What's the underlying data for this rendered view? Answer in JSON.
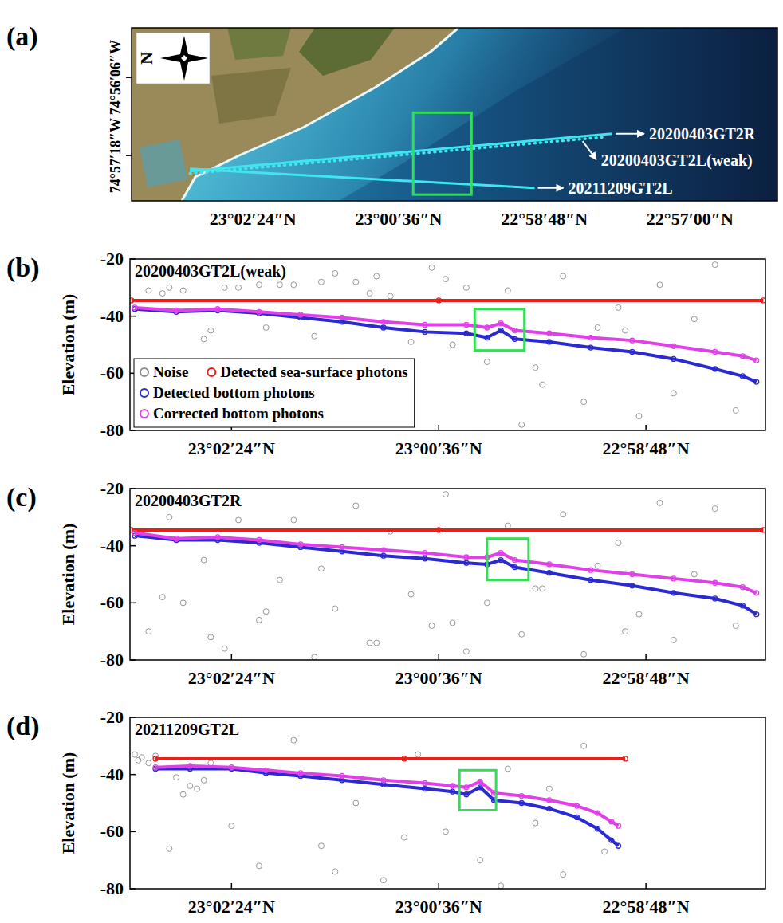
{
  "chart_data": [
    {
      "type": "map",
      "title": "(a)",
      "compass": "N",
      "xlim": [
        23.065,
        22.932
      ],
      "ylim": [
        74.9666,
        74.9223
      ],
      "xticks": [
        {
          "value": 23.04,
          "label": "23°02′24″N"
        },
        {
          "value": 23.01,
          "label": "23°00′36″N"
        },
        {
          "value": 22.98,
          "label": "22°58′48″N"
        },
        {
          "value": 22.95,
          "label": "22°57′00″N"
        }
      ],
      "yticks": [
        {
          "value": 74.955,
          "label": "74°57′18″W"
        },
        {
          "value": 74.935,
          "label": "74°56′06″W"
        }
      ],
      "series": [
        {
          "name": "20200403GT2R",
          "color": "#3fe6f0",
          "line_style": "solid",
          "x": [
            23.053,
            22.966
          ],
          "values": [
            74.959,
            74.9494
          ]
        },
        {
          "name": "20200403GT2L(weak)",
          "color": "#3fe6f0",
          "line_style": "dotted",
          "x": [
            23.053,
            22.968
          ],
          "values": [
            74.9596,
            74.9503
          ]
        },
        {
          "name": "20211209GT2L",
          "color": "#3fe6f0",
          "line_style": "solid",
          "x": [
            23.053,
            22.982
          ],
          "values": [
            74.9584,
            74.9633
          ]
        }
      ],
      "highlight_box": {
        "x": [
          23.007,
          22.995
        ],
        "values": [
          74.944,
          74.965
        ],
        "color": "#33dd55"
      }
    },
    {
      "type": "scatter",
      "title": "(b)",
      "subtitle": "20200403GT2L(weak)",
      "y_label": "Elevation (m)",
      "xlim": [
        23.0547,
        22.9627
      ],
      "ylim": [
        -80,
        -20
      ],
      "xticks": [
        {
          "value": 23.04,
          "label": "23°02′24″N"
        },
        {
          "value": 23.01,
          "label": "23°00′36″N"
        },
        {
          "value": 22.98,
          "label": "22°58′48″N"
        }
      ],
      "yticks": [
        -80,
        -60,
        -40,
        -20
      ],
      "legend": "lower left",
      "series": [
        {
          "name": "Noise",
          "type": "scatter",
          "marker": "circle",
          "color": "#8c8c8c",
          "x": [
            23.052,
            23.049,
            23.047,
            23.044,
            23.041,
            23.039,
            23.036,
            23.033,
            23.031,
            23.028,
            23.025,
            23.022,
            23.02,
            23.017,
            23.014,
            23.011,
            23.009,
            23.006,
            23.003,
            23.0,
            22.998,
            22.995,
            22.992,
            22.989,
            22.987,
            22.984,
            22.981,
            22.978,
            22.976,
            22.973,
            22.97,
            22.967,
            23.05,
            23.043,
            23.035,
            23.027,
            23.019,
            23.008,
            22.996,
            22.983
          ],
          "values": [
            -31,
            -30,
            -31,
            -48,
            -30,
            -30,
            -29,
            -29,
            -29,
            -47,
            -25,
            -28,
            -32,
            -33,
            -49,
            -23,
            -27,
            -30,
            -56,
            -31,
            -78,
            -64,
            -26,
            -70,
            -44,
            -37,
            -75,
            -29,
            -67,
            -41,
            -22,
            -73,
            -32,
            -45,
            -44,
            -28,
            -26,
            -50,
            -58,
            -45
          ]
        },
        {
          "name": "Detected sea-surface photons",
          "type": "line",
          "marker": "circle",
          "color": "#e8201a",
          "x": [
            23.0545,
            23.01,
            22.963
          ],
          "values": [
            -34.5,
            -34.5,
            -34.5
          ]
        },
        {
          "name": "Detected bottom photons",
          "type": "line",
          "marker": "circle",
          "color": "#2a2ad0",
          "x": [
            23.054,
            23.048,
            23.042,
            23.036,
            23.03,
            23.024,
            23.018,
            23.012,
            23.006,
            23.003,
            23.001,
            22.999,
            22.994,
            22.988,
            22.982,
            22.976,
            22.97,
            22.966,
            22.964
          ],
          "values": [
            -37.5,
            -38.5,
            -38,
            -39,
            -40.5,
            -42,
            -44,
            -45.5,
            -46,
            -47.5,
            -45,
            -48,
            -49,
            -51,
            -52.5,
            -55,
            -58.5,
            -61,
            -63
          ]
        },
        {
          "name": "Corrected bottom photons",
          "type": "line",
          "marker": "circle",
          "color": "#e040e8",
          "x": [
            23.054,
            23.048,
            23.042,
            23.036,
            23.03,
            23.024,
            23.018,
            23.012,
            23.006,
            23.003,
            23.001,
            22.999,
            22.994,
            22.988,
            22.982,
            22.976,
            22.97,
            22.966,
            22.964
          ],
          "values": [
            -37,
            -38,
            -37.5,
            -38.5,
            -39.5,
            -40.5,
            -42,
            -43,
            -43,
            -44,
            -42.5,
            -45,
            -46,
            -47.5,
            -48.5,
            -50.5,
            -52.5,
            -54,
            -55.5
          ]
        }
      ],
      "highlight_box": {
        "x": [
          23.0048,
          22.9976
        ],
        "values": [
          -37.5,
          -52
        ],
        "color": "#33dd55"
      }
    },
    {
      "type": "scatter",
      "title": "(c)",
      "subtitle": "20200403GT2R",
      "y_label": "Elevation (m)",
      "xlim": [
        23.0547,
        22.9627
      ],
      "ylim": [
        -80,
        -20
      ],
      "xticks": [
        {
          "value": 23.04,
          "label": "23°02′24″N"
        },
        {
          "value": 23.01,
          "label": "23°00′36″N"
        },
        {
          "value": 22.98,
          "label": "22°58′48″N"
        }
      ],
      "yticks": [
        -80,
        -60,
        -40,
        -20
      ],
      "series": [
        {
          "type": "scatter",
          "marker": "circle",
          "color": "#8c8c8c",
          "x": [
            23.052,
            23.049,
            23.047,
            23.044,
            23.041,
            23.039,
            23.036,
            23.033,
            23.031,
            23.028,
            23.025,
            23.022,
            23.02,
            23.017,
            23.014,
            23.011,
            23.009,
            23.006,
            23.003,
            23.0,
            22.998,
            22.995,
            22.992,
            22.989,
            22.987,
            22.984,
            22.981,
            22.978,
            22.976,
            22.973,
            22.97,
            22.967,
            23.05,
            23.043,
            23.035,
            23.027,
            23.019,
            23.008,
            22.996,
            22.983
          ],
          "values": [
            -70,
            -30,
            -60,
            -45,
            -76,
            -31,
            -66,
            -52,
            -31,
            -79,
            -62,
            -26,
            -74,
            -35,
            -57,
            -68,
            -22,
            -77,
            -60,
            -33,
            -71,
            -55,
            -29,
            -78,
            -47,
            -39,
            -64,
            -25,
            -73,
            -50,
            -27,
            -68,
            -58,
            -72,
            -63,
            -48,
            -74,
            -67,
            -55,
            -70
          ]
        },
        {
          "type": "line",
          "marker": "circle",
          "color": "#e8201a",
          "x": [
            23.0545,
            23.01,
            22.963
          ],
          "values": [
            -34.5,
            -34.5,
            -34.5
          ]
        },
        {
          "type": "line",
          "marker": "circle",
          "color": "#2a2ad0",
          "x": [
            23.054,
            23.048,
            23.042,
            23.036,
            23.03,
            23.024,
            23.018,
            23.012,
            23.006,
            23.003,
            23.001,
            22.999,
            22.994,
            22.988,
            22.982,
            22.976,
            22.97,
            22.966,
            22.964
          ],
          "values": [
            -36.5,
            -38,
            -38,
            -39,
            -40.5,
            -42,
            -43.5,
            -44.5,
            -46,
            -46.5,
            -45,
            -47.5,
            -49.5,
            -52,
            -54,
            -56.5,
            -58.5,
            -61,
            -64
          ]
        },
        {
          "type": "line",
          "marker": "circle",
          "color": "#e040e8",
          "x": [
            23.054,
            23.048,
            23.042,
            23.036,
            23.03,
            23.024,
            23.018,
            23.012,
            23.006,
            23.003,
            23.001,
            22.999,
            22.994,
            22.988,
            22.982,
            22.976,
            22.97,
            22.966,
            22.964
          ],
          "values": [
            -35.5,
            -37.5,
            -37,
            -38,
            -39.5,
            -40.5,
            -41.5,
            -42.5,
            -44,
            -44,
            -42.5,
            -45,
            -46.5,
            -48.5,
            -50,
            -51.5,
            -53,
            -54.5,
            -56.5
          ]
        }
      ],
      "highlight_box": {
        "x": [
          23.003,
          22.997
        ],
        "values": [
          -37.5,
          -52
        ],
        "color": "#33dd55"
      }
    },
    {
      "type": "scatter",
      "title": "(d)",
      "subtitle": "20211209GT2L",
      "y_label": "Elevation (m)",
      "xlim": [
        23.0547,
        22.9627
      ],
      "ylim": [
        -80,
        -20
      ],
      "xticks": [
        {
          "value": 23.04,
          "label": "23°02′24″N"
        },
        {
          "value": 23.01,
          "label": "23°00′36″N"
        },
        {
          "value": 22.98,
          "label": "22°58′48″N"
        }
      ],
      "yticks": [
        -80,
        -60,
        -40,
        -20
      ],
      "series": [
        {
          "type": "scatter",
          "marker": "circle",
          "color": "#8c8c8c",
          "x": [
            23.054,
            23.0535,
            23.053,
            23.052,
            23.051,
            23.048,
            23.046,
            23.044,
            23.047,
            23.045,
            23.04,
            23.036,
            23.031,
            23.027,
            23.022,
            23.018,
            23.013,
            23.009,
            23.004,
            23.0,
            22.996,
            22.992,
            22.989,
            22.986,
            23.043,
            23.025,
            23.015,
            23.001,
            22.994,
            23.049
          ],
          "values": [
            -33,
            -35,
            -34,
            -36,
            -33.5,
            -41,
            -44,
            -42,
            -47,
            -45,
            -58,
            -72,
            -28,
            -65,
            -50,
            -77,
            -33,
            -60,
            -70,
            -38,
            -57,
            -75,
            -30,
            -67,
            -36,
            -74,
            -62,
            -79,
            -45,
            -66
          ]
        },
        {
          "type": "line",
          "marker": "circle",
          "color": "#e8201a",
          "x": [
            23.051,
            23.015,
            22.983
          ],
          "values": [
            -34.5,
            -34.5,
            -34.5
          ]
        },
        {
          "type": "line",
          "marker": "circle",
          "color": "#2a2ad0",
          "x": [
            23.051,
            23.046,
            23.04,
            23.035,
            23.03,
            23.024,
            23.018,
            23.012,
            23.008,
            23.006,
            23.004,
            23.002,
            22.998,
            22.994,
            22.99,
            22.987,
            22.985,
            22.984
          ],
          "values": [
            -38,
            -38,
            -38,
            -39.5,
            -40.5,
            -42,
            -43.5,
            -45,
            -46,
            -47,
            -44.5,
            -49,
            -50,
            -52,
            -55,
            -59,
            -63,
            -65
          ]
        },
        {
          "type": "line",
          "marker": "circle",
          "color": "#e040e8",
          "x": [
            23.051,
            23.046,
            23.04,
            23.035,
            23.03,
            23.024,
            23.018,
            23.012,
            23.008,
            23.006,
            23.004,
            23.002,
            22.998,
            22.994,
            22.99,
            22.987,
            22.985,
            22.984
          ],
          "values": [
            -37.5,
            -37,
            -37.5,
            -38.5,
            -39.5,
            -40.5,
            -42,
            -43,
            -44,
            -44.5,
            -42.5,
            -46.5,
            -47.5,
            -49,
            -51,
            -53.5,
            -56.5,
            -58
          ]
        }
      ],
      "highlight_box": {
        "x": [
          23.007,
          23.0017
        ],
        "values": [
          -38.5,
          -52.5
        ],
        "color": "#33dd55"
      }
    }
  ]
}
